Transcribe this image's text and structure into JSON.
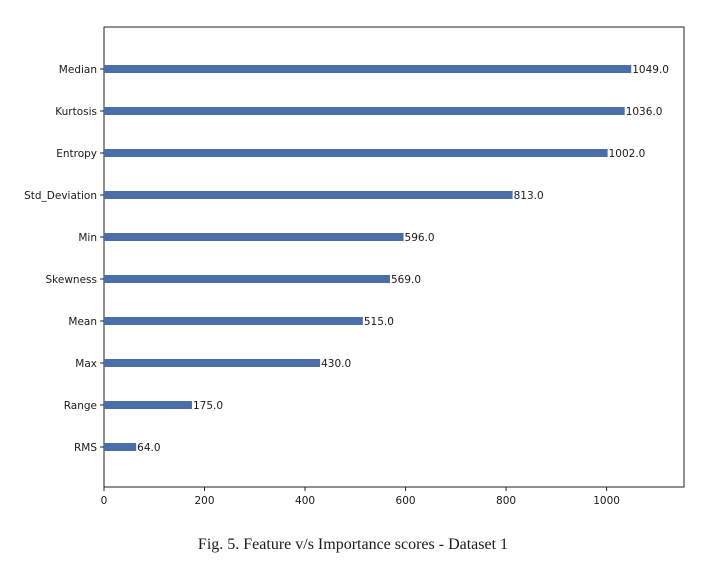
{
  "caption": "Fig. 5.  Feature v/s Importance scores - Dataset 1",
  "chart_data": {
    "type": "bar",
    "orientation": "horizontal",
    "categories": [
      "Median",
      "Kurtosis",
      "Entropy",
      "Std_Deviation",
      "Min",
      "Skewness",
      "Mean",
      "Max",
      "Range",
      "RMS"
    ],
    "values": [
      1049.0,
      1036.0,
      1002.0,
      813.0,
      596.0,
      569.0,
      515.0,
      430.0,
      175.0,
      64.0
    ],
    "value_labels": [
      "1049.0",
      "1036.0",
      "1002.0",
      "813.0",
      "596.0",
      "569.0",
      "515.0",
      "430.0",
      "175.0",
      "64.0"
    ],
    "xticks": [
      0,
      200,
      400,
      600,
      800,
      1000
    ],
    "xlim": [
      0,
      1154
    ],
    "grid": false,
    "bar_color": "#4c6ea8"
  }
}
